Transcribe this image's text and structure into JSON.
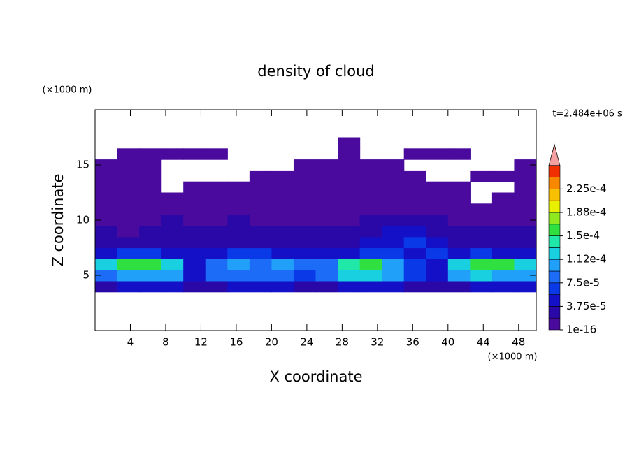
{
  "chart_data": {
    "type": "contour",
    "title": "density of cloud",
    "x_label": "X coordinate",
    "y_label": "Z coordinate",
    "x_unit": "(×1000 m)",
    "y_unit": "(×1000 m)",
    "annotation": "t=2.484e+06 s",
    "xlim": [
      0,
      50
    ],
    "ylim": [
      0,
      20
    ],
    "xticks": [
      4,
      8,
      12,
      16,
      20,
      24,
      28,
      32,
      36,
      40,
      44,
      48
    ],
    "yticks": [
      5,
      10,
      15
    ],
    "x_edges": [
      0,
      2.5,
      5,
      7.5,
      10,
      12.5,
      15,
      17.5,
      20,
      22.5,
      25,
      27.5,
      30,
      32.5,
      35,
      37.5,
      40,
      42.5,
      45,
      47.5,
      50
    ],
    "y_edges": [
      3.5,
      4.5,
      5.5,
      6.5,
      7.5,
      8.5,
      9.5,
      10.5,
      11.5,
      12.5,
      13.5,
      14.5,
      15.5,
      16.5,
      17.5
    ],
    "values": [
      [
        3e-05,
        4e-05,
        4e-05,
        4e-05,
        2e-05,
        3e-05,
        4e-05,
        4e-05,
        4e-05,
        3e-05,
        3e-05,
        4e-05,
        4e-05,
        4e-05,
        3e-05,
        2e-05,
        3e-05,
        4e-05,
        4e-05,
        4e-05
      ],
      [
        9e-05,
        0.00011,
        0.00011,
        0.0001,
        5e-05,
        8e-05,
        9e-05,
        8e-05,
        9e-05,
        7e-05,
        8e-05,
        0.00012,
        0.00013,
        0.00011,
        6e-05,
        5e-05,
        0.00011,
        0.00012,
        0.00011,
        0.0001
      ],
      [
        0.00013,
        0.00016,
        0.00015,
        0.00012,
        5e-05,
        9e-05,
        0.0001,
        9e-05,
        0.0001,
        8e-05,
        9e-05,
        0.00014,
        0.00015,
        0.00011,
        6e-05,
        5e-05,
        0.00013,
        0.00016,
        0.00015,
        0.00012
      ],
      [
        5e-05,
        6e-05,
        6e-05,
        5e-05,
        4e-05,
        5e-05,
        6e-05,
        6e-05,
        5e-05,
        4e-05,
        4e-05,
        5e-05,
        6e-05,
        6e-05,
        5e-05,
        6e-05,
        5e-05,
        6e-05,
        5e-05,
        5e-05
      ],
      [
        3e-05,
        3e-05,
        2e-05,
        3e-05,
        3e-05,
        3e-05,
        2e-05,
        3e-05,
        3e-05,
        3e-05,
        3e-05,
        3e-05,
        4e-05,
        5e-05,
        6e-05,
        5e-05,
        3e-05,
        3e-05,
        3e-05,
        3e-05
      ],
      [
        2e-05,
        1e-05,
        2e-05,
        2e-05,
        3e-05,
        2e-05,
        2e-05,
        2e-05,
        2e-05,
        2e-05,
        2e-05,
        2e-05,
        3e-05,
        4e-05,
        5e-05,
        3e-05,
        2e-05,
        2e-05,
        2e-05,
        2e-05
      ],
      [
        1e-05,
        1e-05,
        1e-05,
        2e-05,
        1e-05,
        1e-05,
        2e-05,
        1e-05,
        1e-05,
        1e-05,
        1e-05,
        1e-05,
        2e-05,
        2e-05,
        2e-05,
        2e-05,
        1e-05,
        1e-05,
        1e-05,
        1e-05
      ],
      [
        1e-05,
        1e-05,
        1e-05,
        1e-05,
        1e-05,
        1e-05,
        1e-05,
        1e-05,
        1e-05,
        1e-05,
        1e-05,
        1e-05,
        1e-05,
        1e-05,
        1e-05,
        1e-05,
        1e-05,
        1e-05,
        1e-05,
        1e-05
      ],
      [
        1e-05,
        1e-05,
        1e-05,
        1e-05,
        1e-05,
        1e-05,
        1e-05,
        1e-05,
        1e-05,
        1e-05,
        1e-05,
        1e-05,
        1e-05,
        1e-05,
        1e-05,
        1e-05,
        1e-05,
        null,
        1e-05,
        1e-05
      ],
      [
        1e-05,
        1e-05,
        1e-05,
        null,
        1e-05,
        1e-05,
        1e-05,
        1e-05,
        1e-05,
        1e-05,
        1e-05,
        1e-05,
        1e-05,
        1e-05,
        1e-05,
        1e-05,
        1e-05,
        null,
        null,
        1e-05
      ],
      [
        1e-05,
        1e-05,
        1e-05,
        null,
        null,
        null,
        null,
        1e-05,
        1e-05,
        1e-05,
        1e-05,
        1e-05,
        1e-05,
        1e-05,
        1e-05,
        null,
        null,
        1e-05,
        1e-05,
        1e-05
      ],
      [
        1e-05,
        1e-05,
        1e-05,
        null,
        null,
        null,
        null,
        null,
        null,
        1e-05,
        1e-05,
        1e-05,
        1e-05,
        1e-05,
        null,
        null,
        null,
        null,
        null,
        1e-05
      ],
      [
        null,
        1e-05,
        1e-05,
        1e-05,
        1e-05,
        1e-05,
        null,
        null,
        null,
        null,
        null,
        1e-05,
        null,
        null,
        1e-05,
        1e-05,
        1e-05,
        null,
        null,
        null
      ],
      [
        null,
        null,
        null,
        null,
        null,
        null,
        null,
        null,
        null,
        null,
        null,
        1e-05,
        null,
        null,
        null,
        null,
        null,
        null,
        null,
        null
      ]
    ],
    "levels": [
      1e-16,
      1.875e-05,
      3.75e-05,
      5.625e-05,
      7.5e-05,
      9.375e-05,
      0.0001125,
      0.00013125,
      0.00015,
      0.00016875,
      0.0001875,
      0.00020625,
      0.000225,
      0.00024375,
      0.0002625
    ],
    "colors": [
      "#4b0a9e",
      "#2a08a8",
      "#1410c8",
      "#0a3ae8",
      "#1c6cf8",
      "#20a0f8",
      "#18d0e0",
      "#20e8a8",
      "#30e040",
      "#90e820",
      "#e8f000",
      "#f8c000",
      "#f88800",
      "#f03000"
    ],
    "over_color": "#f4a0a0",
    "colorbar_ticks": [
      {
        "value": 1e-16,
        "label": "1e-16"
      },
      {
        "value": 3.75e-05,
        "label": "3.75e-5"
      },
      {
        "value": 7.5e-05,
        "label": "7.5e-5"
      },
      {
        "value": 0.0001125,
        "label": "1.12e-4"
      },
      {
        "value": 0.00015,
        "label": "1.5e-4"
      },
      {
        "value": 0.0001875,
        "label": "1.88e-4"
      },
      {
        "value": 0.000225,
        "label": "2.25e-4"
      }
    ]
  }
}
